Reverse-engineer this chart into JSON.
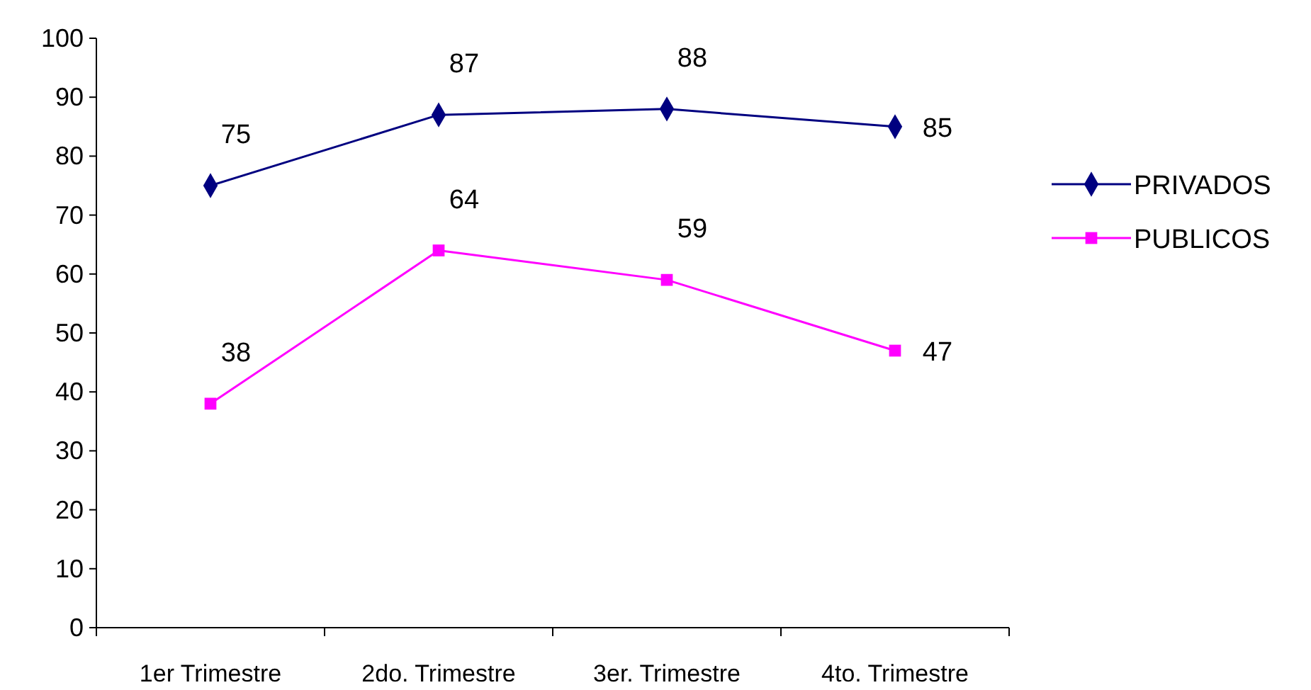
{
  "chart_data": {
    "type": "line",
    "categories": [
      "1er Trimestre",
      "2do. Trimestre",
      "3er. Trimestre",
      "4to. Trimestre"
    ],
    "series": [
      {
        "name": "PRIVADOS",
        "color": "#000080",
        "values": [
          75,
          87,
          88,
          85
        ],
        "marker": "diamond"
      },
      {
        "name": "PUBLICOS",
        "color": "#ff00ff",
        "values": [
          38,
          64,
          59,
          47
        ],
        "marker": "square"
      }
    ],
    "ylim": [
      0,
      100
    ],
    "yticks": [
      0,
      10,
      20,
      30,
      40,
      50,
      60,
      70,
      80,
      90,
      100
    ],
    "grid": false,
    "legend": "right",
    "data_labels": true,
    "line_style": "solid"
  }
}
